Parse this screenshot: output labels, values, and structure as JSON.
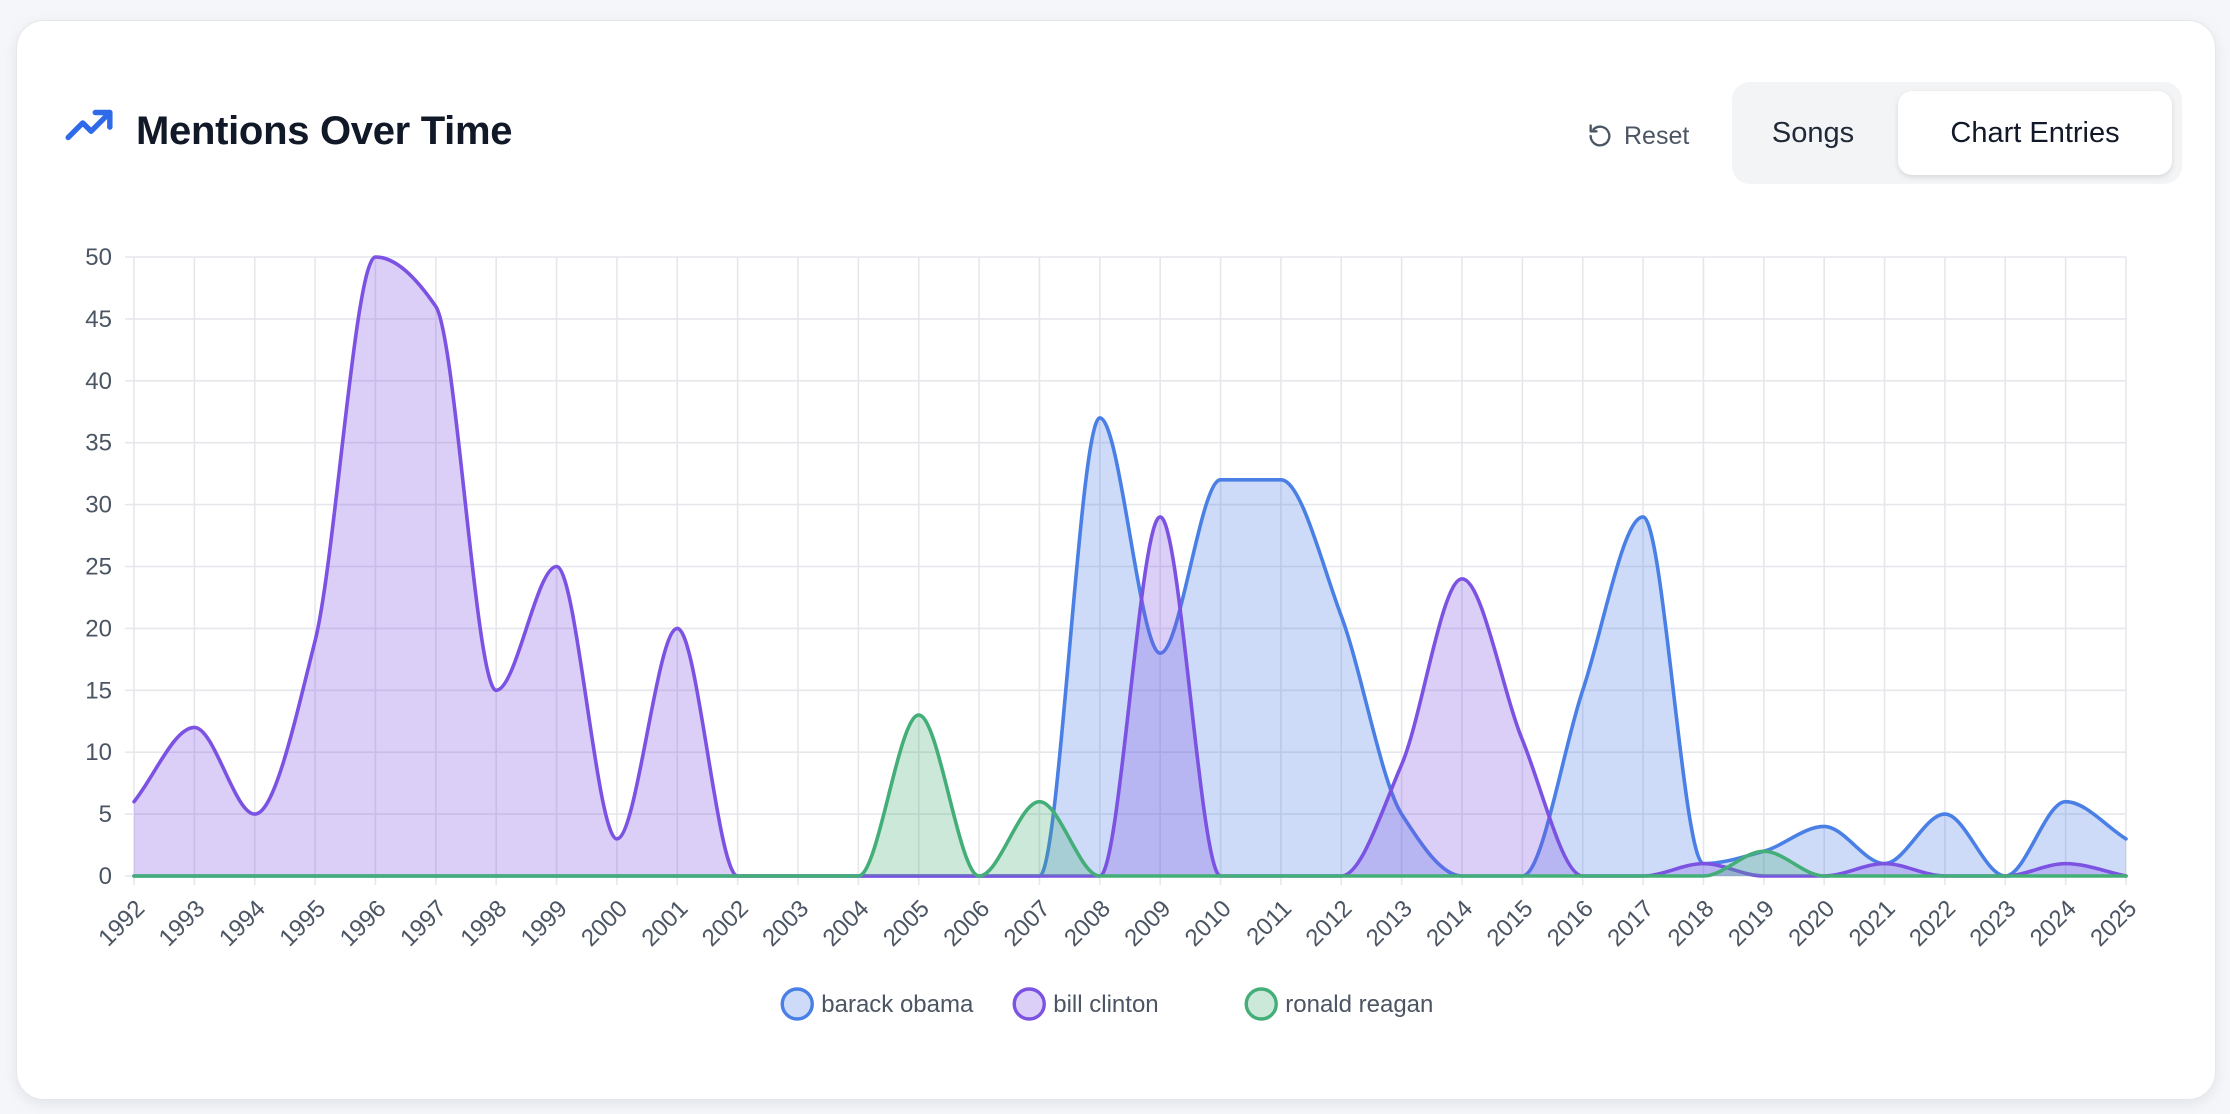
{
  "header": {
    "title": "Mentions Over Time",
    "icon": "trending-up-icon",
    "reset_label": "Reset",
    "toggle": {
      "options": [
        "Songs",
        "Chart Entries"
      ],
      "selected": "Chart Entries"
    }
  },
  "colors": {
    "barack obama": "#4a7fe6",
    "bill clinton": "#7c52e3",
    "ronald reagan": "#44ae78"
  },
  "chart_data": {
    "type": "area",
    "x": [
      1992,
      1993,
      1994,
      1995,
      1996,
      1997,
      1998,
      1999,
      2000,
      2001,
      2002,
      2003,
      2004,
      2005,
      2006,
      2007,
      2008,
      2009,
      2010,
      2011,
      2012,
      2013,
      2014,
      2015,
      2016,
      2017,
      2018,
      2019,
      2020,
      2021,
      2022,
      2023,
      2024,
      2025
    ],
    "ylim": [
      0,
      50
    ],
    "yticks": [
      0,
      5,
      10,
      15,
      20,
      25,
      30,
      35,
      40,
      45,
      50
    ],
    "grid": true,
    "legend": "bottom-center",
    "series": [
      {
        "name": "barack obama",
        "values": [
          0,
          0,
          0,
          0,
          0,
          0,
          0,
          0,
          0,
          0,
          0,
          0,
          0,
          0,
          0,
          0,
          37,
          18,
          32,
          32,
          21,
          5,
          0,
          0,
          15,
          29,
          1,
          2,
          4,
          1,
          5,
          0,
          6,
          3
        ]
      },
      {
        "name": "bill clinton",
        "values": [
          6,
          12,
          5,
          19,
          50,
          46,
          15,
          25,
          3,
          20,
          0,
          0,
          0,
          0,
          0,
          0,
          0,
          29,
          0,
          0,
          0,
          9,
          24,
          11,
          0,
          0,
          1,
          0,
          0,
          1,
          0,
          0,
          1,
          0
        ]
      },
      {
        "name": "ronald reagan",
        "values": [
          0,
          0,
          0,
          0,
          0,
          0,
          0,
          0,
          0,
          0,
          0,
          0,
          0,
          13,
          0,
          6,
          0,
          0,
          0,
          0,
          0,
          0,
          0,
          0,
          0,
          0,
          0,
          2,
          0,
          0,
          0,
          0,
          0,
          0
        ]
      }
    ]
  }
}
